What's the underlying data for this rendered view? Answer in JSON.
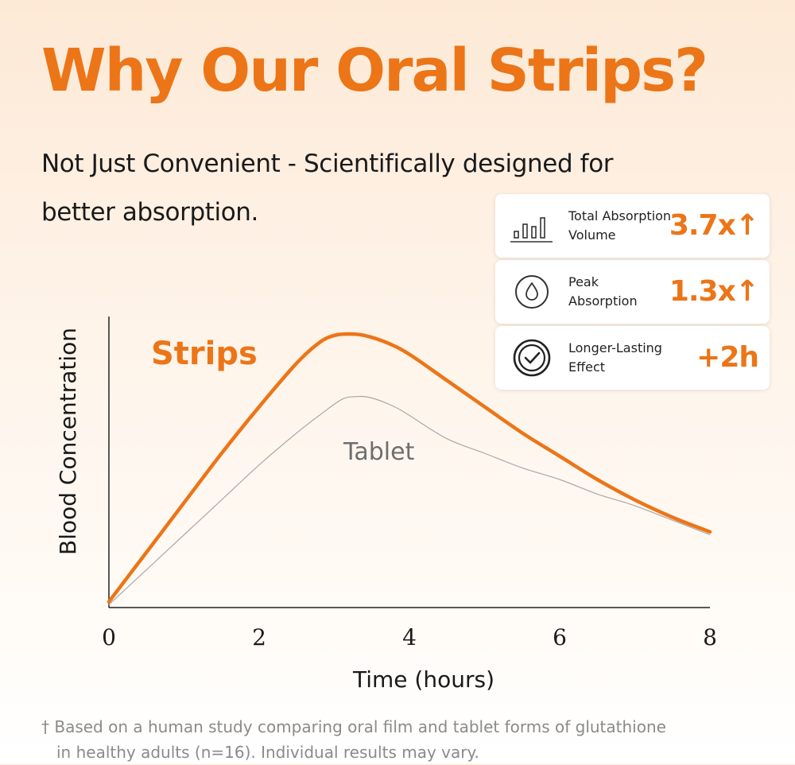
{
  "title": "Why Our Oral Strips?",
  "subtitle": {
    "line1": "Not Just Convenient - Scientifically designed for",
    "line2": "better absorption."
  },
  "stats": [
    {
      "icon": "bar-chart-icon",
      "label_line1": "Total Absorption",
      "label_line2": "Volume",
      "value": "3.7x↑"
    },
    {
      "icon": "water-drop-icon",
      "label_line1": "Peak",
      "label_line2": "Absorption",
      "value": "1.3x↑"
    },
    {
      "icon": "check-circle-icon",
      "label_line1": "Longer-Lasting",
      "label_line2": "Effect",
      "value": "+2h"
    }
  ],
  "chart_data": {
    "type": "line",
    "xlabel": "Time (hours)",
    "ylabel": "Blood Concentration",
    "xlim": [
      0,
      8
    ],
    "ylim": [
      0,
      10
    ],
    "xticks": [
      "0",
      "2",
      "4",
      "6",
      "8"
    ],
    "grid": false,
    "series": [
      {
        "name": "Strips",
        "color": "#ec7518",
        "x": [
          0,
          0.5,
          1,
          1.5,
          2,
          2.5,
          2.8,
          3.0,
          3.2,
          3.4,
          3.7,
          4.0,
          4.5,
          5.0,
          5.5,
          6.0,
          6.5,
          7.0,
          7.5,
          8.0
        ],
        "y": [
          0.2,
          1.9,
          3.6,
          5.3,
          6.9,
          8.4,
          9.1,
          9.35,
          9.4,
          9.35,
          9.1,
          8.7,
          7.8,
          6.9,
          6.0,
          5.2,
          4.4,
          3.7,
          3.1,
          2.6
        ]
      },
      {
        "name": "Tablet",
        "color": "#a8a8a8",
        "x": [
          0,
          0.5,
          1,
          1.5,
          2,
          2.5,
          2.8,
          3.1,
          3.3,
          3.5,
          3.8,
          4.0,
          4.5,
          5.0,
          5.5,
          6.0,
          6.5,
          7.0,
          7.5,
          8.0
        ],
        "y": [
          0.1,
          1.3,
          2.5,
          3.7,
          4.9,
          6.0,
          6.6,
          7.15,
          7.25,
          7.2,
          6.9,
          6.6,
          5.8,
          5.3,
          4.8,
          4.4,
          3.9,
          3.5,
          3.0,
          2.5
        ]
      }
    ]
  },
  "footnote": {
    "line1": "† Based on a human study comparing oral film and tablet forms of glutathione",
    "line2": "in healthy adults (n=16). Individual results may vary."
  }
}
